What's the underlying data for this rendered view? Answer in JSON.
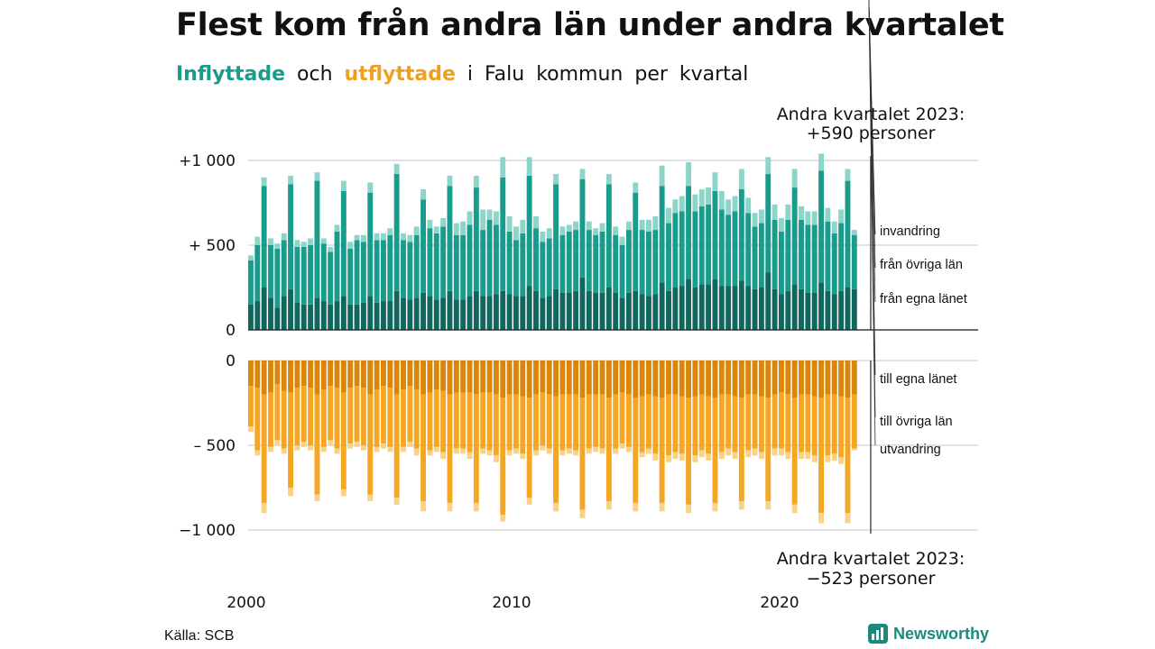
{
  "header": {
    "title": "Flest kom från andra län under andra kvartalet",
    "subtitle_in": "Inflyttade",
    "subtitle_and": "och",
    "subtitle_out": "utflyttade",
    "subtitle_rest": "i Falu kommun per kvartal"
  },
  "annotations": {
    "top_line1": "Andra kvartalet 2023:",
    "top_line2": "+590 personer",
    "bottom_line1": "Andra kvartalet 2023:",
    "bottom_line2": "−523 personer"
  },
  "footer": {
    "source": "Källa: SCB",
    "brand": "Newsworthy"
  },
  "colors": {
    "in_own": "#11675d",
    "in_other": "#1a9c8c",
    "in_immig": "#8dd5c9",
    "out_own": "#d9860b",
    "out_other": "#f5a623",
    "out_emig": "#f9d28a",
    "grid": "#d8d8d8",
    "axis": "#222222"
  },
  "chart_data": {
    "type": "bar",
    "stacked": true,
    "x_label": "",
    "y_label": "",
    "x_ticks": [
      "2000",
      "2010",
      "2020"
    ],
    "y_ticks_top": [
      "0",
      "+ 500",
      "+1 000"
    ],
    "y_ticks_bottom": [
      "0",
      "– 500",
      "−1 000"
    ],
    "ylim_top": [
      0,
      1000
    ],
    "ylim_bottom": [
      -1000,
      0
    ],
    "quarters": [
      "2000Q1",
      "2000Q2",
      "2000Q3",
      "2000Q4",
      "2001Q1",
      "2001Q2",
      "2001Q3",
      "2001Q4",
      "2002Q1",
      "2002Q2",
      "2002Q3",
      "2002Q4",
      "2003Q1",
      "2003Q2",
      "2003Q3",
      "2003Q4",
      "2004Q1",
      "2004Q2",
      "2004Q3",
      "2004Q4",
      "2005Q1",
      "2005Q2",
      "2005Q3",
      "2005Q4",
      "2006Q1",
      "2006Q2",
      "2006Q3",
      "2006Q4",
      "2007Q1",
      "2007Q2",
      "2007Q3",
      "2007Q4",
      "2008Q1",
      "2008Q2",
      "2008Q3",
      "2008Q4",
      "2009Q1",
      "2009Q2",
      "2009Q3",
      "2009Q4",
      "2010Q1",
      "2010Q2",
      "2010Q3",
      "2010Q4",
      "2011Q1",
      "2011Q2",
      "2011Q3",
      "2011Q4",
      "2012Q1",
      "2012Q2",
      "2012Q3",
      "2012Q4",
      "2013Q1",
      "2013Q2",
      "2013Q3",
      "2013Q4",
      "2014Q1",
      "2014Q2",
      "2014Q3",
      "2014Q4",
      "2015Q1",
      "2015Q2",
      "2015Q3",
      "2015Q4",
      "2016Q1",
      "2016Q2",
      "2016Q3",
      "2016Q4",
      "2017Q1",
      "2017Q2",
      "2017Q3",
      "2017Q4",
      "2018Q1",
      "2018Q2",
      "2018Q3",
      "2018Q4",
      "2019Q1",
      "2019Q2",
      "2019Q3",
      "2019Q4",
      "2020Q1",
      "2020Q2",
      "2020Q3",
      "2020Q4",
      "2021Q1",
      "2021Q2",
      "2021Q3",
      "2021Q4",
      "2022Q1",
      "2022Q2",
      "2022Q3",
      "2022Q4",
      "2023Q1",
      "2023Q2"
    ],
    "series_in": [
      {
        "name": "från egna länet",
        "values": [
          150,
          170,
          250,
          190,
          130,
          200,
          240,
          160,
          150,
          150,
          190,
          170,
          150,
          170,
          200,
          150,
          150,
          160,
          200,
          160,
          170,
          170,
          230,
          190,
          180,
          190,
          220,
          200,
          180,
          190,
          230,
          180,
          180,
          200,
          230,
          200,
          200,
          210,
          230,
          210,
          200,
          200,
          260,
          230,
          190,
          200,
          240,
          220,
          220,
          230,
          310,
          230,
          220,
          220,
          250,
          220,
          190,
          220,
          230,
          210,
          200,
          210,
          280,
          230,
          250,
          260,
          300,
          250,
          270,
          270,
          300,
          260,
          260,
          260,
          290,
          260,
          240,
          250,
          340,
          240,
          210,
          230,
          270,
          240,
          220,
          220,
          280,
          230,
          210,
          230,
          250,
          240
        ]
      },
      {
        "name": "från övriga län",
        "values": [
          260,
          330,
          600,
          310,
          350,
          330,
          620,
          330,
          340,
          350,
          690,
          340,
          310,
          410,
          620,
          330,
          380,
          360,
          610,
          370,
          360,
          390,
          690,
          340,
          340,
          370,
          550,
          400,
          390,
          420,
          620,
          380,
          380,
          420,
          610,
          390,
          450,
          410,
          670,
          370,
          330,
          370,
          650,
          370,
          330,
          340,
          620,
          340,
          360,
          360,
          580,
          360,
          340,
          360,
          610,
          340,
          310,
          370,
          580,
          380,
          380,
          380,
          570,
          400,
          440,
          440,
          550,
          450,
          460,
          470,
          520,
          450,
          420,
          440,
          540,
          430,
          370,
          380,
          580,
          410,
          370,
          420,
          570,
          410,
          400,
          400,
          660,
          410,
          360,
          400,
          630,
          320
        ]
      },
      {
        "name": "invandring",
        "values": [
          30,
          50,
          50,
          40,
          30,
          40,
          50,
          40,
          30,
          40,
          50,
          30,
          30,
          40,
          60,
          40,
          30,
          40,
          60,
          40,
          40,
          40,
          60,
          40,
          40,
          50,
          60,
          50,
          40,
          50,
          60,
          70,
          80,
          80,
          70,
          120,
          60,
          80,
          120,
          90,
          80,
          80,
          110,
          70,
          60,
          60,
          60,
          50,
          40,
          50,
          60,
          50,
          40,
          50,
          60,
          50,
          50,
          50,
          60,
          60,
          70,
          80,
          120,
          90,
          80,
          90,
          140,
          100,
          100,
          100,
          110,
          110,
          90,
          90,
          120,
          90,
          80,
          80,
          100,
          90,
          80,
          90,
          110,
          80,
          80,
          80,
          100,
          80,
          70,
          80,
          70,
          30
        ]
      }
    ],
    "series_out": [
      {
        "name": "till egna länet",
        "values": [
          -150,
          -160,
          -200,
          -190,
          -140,
          -180,
          -190,
          -160,
          -150,
          -160,
          -200,
          -170,
          -150,
          -160,
          -190,
          -160,
          -150,
          -160,
          -200,
          -170,
          -150,
          -160,
          -200,
          -170,
          -150,
          -170,
          -200,
          -190,
          -170,
          -180,
          -200,
          -190,
          -190,
          -190,
          -200,
          -190,
          -190,
          -200,
          -220,
          -200,
          -200,
          -210,
          -220,
          -200,
          -190,
          -200,
          -210,
          -200,
          -200,
          -200,
          -220,
          -200,
          -200,
          -200,
          -220,
          -200,
          -190,
          -200,
          -220,
          -210,
          -200,
          -210,
          -220,
          -200,
          -200,
          -210,
          -220,
          -210,
          -200,
          -210,
          -220,
          -200,
          -200,
          -210,
          -220,
          -200,
          -200,
          -210,
          -220,
          -200,
          -190,
          -200,
          -220,
          -200,
          -200,
          -210,
          -220,
          -200,
          -200,
          -210,
          -220,
          -200
        ]
      },
      {
        "name": "till övriga län",
        "values": [
          -240,
          -370,
          -640,
          -320,
          -330,
          -340,
          -560,
          -340,
          -330,
          -340,
          -590,
          -340,
          -320,
          -360,
          -570,
          -330,
          -330,
          -340,
          -590,
          -340,
          -340,
          -350,
          -610,
          -340,
          -330,
          -350,
          -630,
          -340,
          -340,
          -360,
          -640,
          -330,
          -330,
          -350,
          -640,
          -330,
          -340,
          -360,
          -690,
          -330,
          -320,
          -340,
          -590,
          -330,
          -310,
          -320,
          -630,
          -330,
          -320,
          -330,
          -660,
          -320,
          -310,
          -320,
          -610,
          -320,
          -300,
          -310,
          -620,
          -330,
          -320,
          -340,
          -620,
          -360,
          -340,
          -340,
          -630,
          -350,
          -330,
          -340,
          -620,
          -340,
          -320,
          -330,
          -610,
          -330,
          -320,
          -330,
          -610,
          -320,
          -330,
          -340,
          -630,
          -340,
          -340,
          -350,
          -680,
          -360,
          -350,
          -360,
          -680,
          -320
        ]
      },
      {
        "name": "utvandring",
        "values": [
          -30,
          -30,
          -60,
          -30,
          -30,
          -30,
          -50,
          -30,
          -30,
          -30,
          -40,
          -30,
          -30,
          -30,
          -40,
          -30,
          -30,
          -30,
          -40,
          -30,
          -30,
          -30,
          -40,
          -30,
          -30,
          -40,
          -60,
          -30,
          -30,
          -40,
          -50,
          -30,
          -30,
          -40,
          -50,
          -30,
          -30,
          -40,
          -40,
          -30,
          -30,
          -30,
          -40,
          -30,
          -30,
          -30,
          -50,
          -30,
          -30,
          -30,
          -50,
          -30,
          -30,
          -30,
          -50,
          -30,
          -30,
          -30,
          -50,
          -30,
          -30,
          -40,
          -50,
          -40,
          -40,
          -40,
          -50,
          -40,
          -40,
          -40,
          -50,
          -40,
          -40,
          -40,
          -50,
          -40,
          -40,
          -40,
          -50,
          -40,
          -40,
          -40,
          -50,
          -40,
          -40,
          -40,
          -60,
          -40,
          -40,
          -40,
          -60,
          -10
        ]
      }
    ]
  }
}
